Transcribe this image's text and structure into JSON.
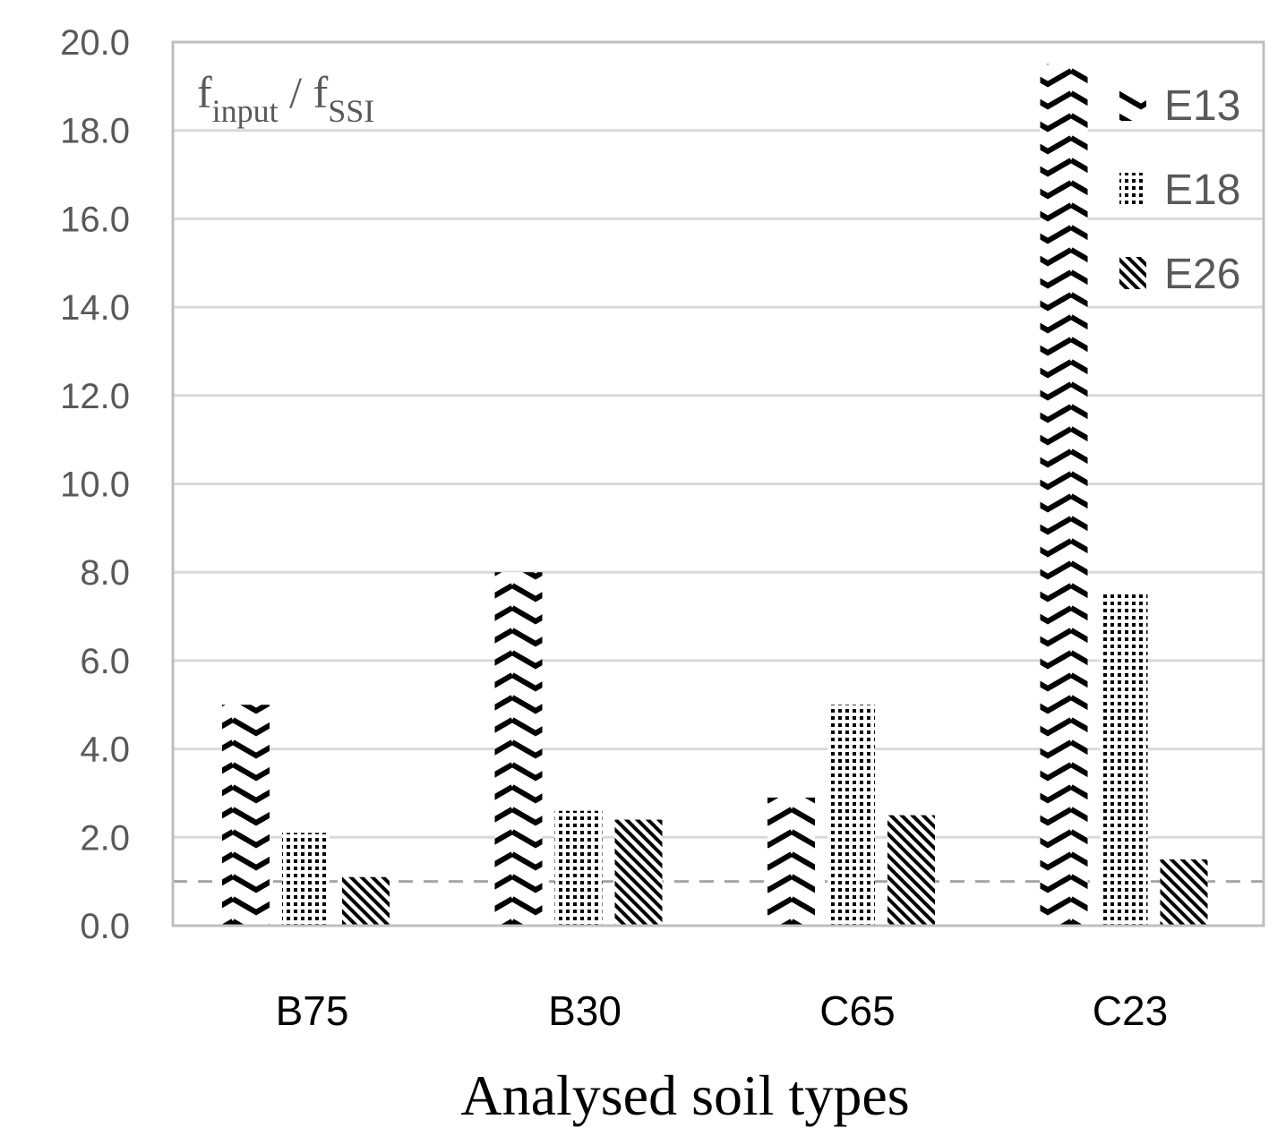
{
  "chart_data": {
    "type": "bar",
    "title": "",
    "ylabel": {
      "main1": "f",
      "sub1": "input",
      "sep": " / ",
      "main2": "f",
      "sub2": "SSI"
    },
    "xlabel": "Analysed soil types",
    "categories": [
      "B75",
      "B30",
      "C65",
      "C23"
    ],
    "series": [
      {
        "name": "E13",
        "pattern": "wave",
        "values": [
          5.0,
          8.0,
          2.9,
          19.5
        ]
      },
      {
        "name": "E18",
        "pattern": "dots",
        "values": [
          2.1,
          2.6,
          5.0,
          7.5
        ]
      },
      {
        "name": "E26",
        "pattern": "diagonal",
        "values": [
          1.1,
          2.4,
          2.5,
          1.5
        ]
      }
    ],
    "ylim": [
      0,
      20
    ],
    "yticks": [
      "0.0",
      "2.0",
      "4.0",
      "6.0",
      "8.0",
      "10.0",
      "12.0",
      "14.0",
      "16.0",
      "18.0",
      "20.0"
    ],
    "reference_line": {
      "value": 1.0,
      "style": "dashed"
    },
    "grid": true,
    "legend_position": "top-right"
  },
  "colors": {
    "grid": "#d9d9d9",
    "frame": "#bfbfbf",
    "reference": "#a6a6a6",
    "bar": "#000000"
  }
}
